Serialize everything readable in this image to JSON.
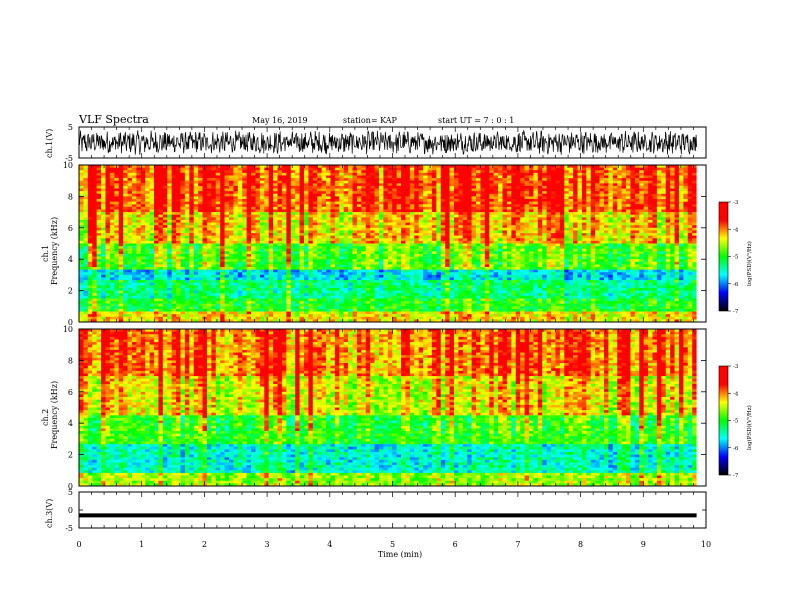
{
  "header": {
    "title": "VLF Spectra",
    "date": "May 16, 2019",
    "station": "station= KAP",
    "start": "start UT =  7 : 0  : 1"
  },
  "colors": {
    "background": "#ffffff",
    "trace": "#000000",
    "colormap": [
      "#000000",
      "#0000ff",
      "#00ffff",
      "#00ff00",
      "#ffff00",
      "#ff0000",
      "#ff0000"
    ]
  },
  "chart_data": [
    {
      "type": "line",
      "panel": "ch1-waveform",
      "ylabel": "ch.1(V)",
      "ylim": [
        -5,
        5
      ],
      "yticks": [
        5,
        -5
      ],
      "description_values": "noisy waveform oscillating mostly between about -3 and +4 V",
      "xlim": [
        0,
        10
      ]
    },
    {
      "type": "heatmap",
      "panel": "ch1-spectrogram",
      "ylabel": "ch.1\nFrequency (kHz)",
      "ylim": [
        0,
        10
      ],
      "yticks": [
        0,
        2,
        4,
        6,
        8,
        10
      ],
      "xlim": [
        0,
        10
      ],
      "colorbar": {
        "label": "log(PSD)(V²/Hz)",
        "ticks": [
          -3,
          -4,
          -5,
          -6,
          -7
        ]
      },
      "bands": [
        {
          "from": 0,
          "to": 0.6,
          "level": -4.3
        },
        {
          "from": 0.6,
          "to": 1.5,
          "level": -5.0
        },
        {
          "from": 1.5,
          "to": 2.6,
          "level": -5.3
        },
        {
          "from": 2.6,
          "to": 3.4,
          "level": -5.7
        },
        {
          "from": 3.4,
          "to": 5.0,
          "level": -4.8
        },
        {
          "from": 5.0,
          "to": 7.0,
          "level": -4.2
        },
        {
          "from": 7.0,
          "to": 10.0,
          "level": -3.8
        }
      ]
    },
    {
      "type": "heatmap",
      "panel": "ch2-spectrogram",
      "ylabel": "ch.2\nFrequency (kHz)",
      "ylim": [
        0,
        10
      ],
      "yticks": [
        0,
        2,
        4,
        6,
        8,
        10
      ],
      "xlim": [
        0,
        10
      ],
      "colorbar": {
        "label": "log(PSD)(V²/Hz)",
        "ticks": [
          -3,
          -4,
          -5,
          -6,
          -7
        ]
      },
      "bands": [
        {
          "from": 0,
          "to": 0.8,
          "level": -4.6
        },
        {
          "from": 0.8,
          "to": 2.6,
          "level": -5.5
        },
        {
          "from": 2.6,
          "to": 4.5,
          "level": -4.9
        },
        {
          "from": 4.5,
          "to": 7.0,
          "level": -4.3
        },
        {
          "from": 7.0,
          "to": 10.0,
          "level": -3.9
        }
      ]
    },
    {
      "type": "line",
      "panel": "ch3-waveform",
      "ylabel": "ch.3(V)",
      "ylim": [
        -5,
        5
      ],
      "yticks": [
        5,
        0,
        -5
      ],
      "xlim": [
        0,
        10
      ],
      "x": [
        0,
        9.85
      ],
      "y": [
        -1.5,
        -1.5
      ]
    }
  ],
  "xaxis": {
    "label": "Time (min)",
    "ticks": [
      0,
      1,
      2,
      3,
      4,
      5,
      6,
      7,
      8,
      9,
      10
    ]
  }
}
